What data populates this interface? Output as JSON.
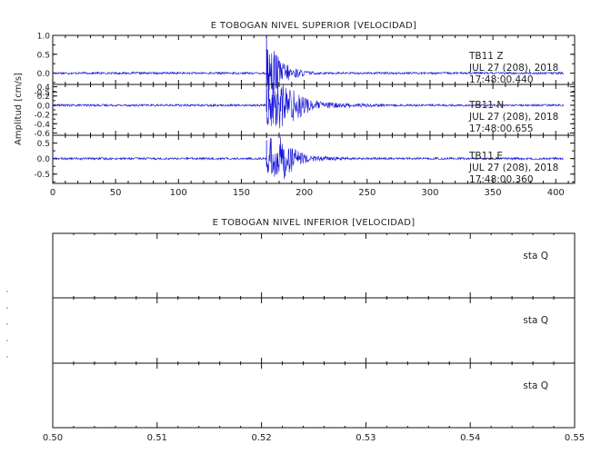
{
  "chart_data": [
    {
      "type": "line",
      "title": "E TOBOGAN NIVEL SUPERIOR [VELOCIDAD]",
      "ylabel": "Amplitud [cm/s]",
      "xlim": [
        0,
        415
      ],
      "x_ticks": [
        "0",
        "50",
        "100",
        "150",
        "200",
        "250",
        "300",
        "350",
        "400"
      ],
      "line_color": "#1414d8",
      "traces": [
        {
          "station": "TB11",
          "component": "Z",
          "date": "JUL 27 (208), 2018",
          "time": "17:48:00.440",
          "ylim": [
            -0.3,
            1.0
          ],
          "y_ticks": [
            "1.0",
            "0.5",
            "0.0",
            "-0.5"
          ],
          "onset_s": 170,
          "peak_amplitude": 1.0,
          "coda_duration_s": 60
        },
        {
          "station": "TB11",
          "component": "N",
          "date": "JUL 27 (208), 2018",
          "time": "17:48:00.655",
          "ylim": [
            -0.65,
            0.45
          ],
          "y_ticks": [
            "0.4",
            "0.2",
            "0.0",
            "-0.2",
            "-0.4",
            "-0.6"
          ],
          "onset_s": 170,
          "peak_amplitude": 0.4,
          "coda_duration_s": 110
        },
        {
          "station": "TB11",
          "component": "E",
          "date": "JUL 27 (208), 2018",
          "time": "17:48:00.360",
          "ylim": [
            -0.8,
            0.75
          ],
          "y_ticks": [
            "0.5",
            "0.0",
            "-0.5"
          ],
          "onset_s": 170,
          "peak_amplitude": 0.6,
          "coda_duration_s": 90
        }
      ]
    },
    {
      "type": "line",
      "title": "E TOBOGAN NIVEL INFERIOR [VELOCIDAD]",
      "xlim": [
        0.5,
        0.55
      ],
      "x_ticks": [
        "0.50",
        "0.51",
        "0.52",
        "0.53",
        "0.54",
        "0.55"
      ],
      "traces": [
        {
          "station": "sta",
          "component": "Q"
        },
        {
          "station": "sta",
          "component": "Q"
        },
        {
          "station": "sta",
          "component": "Q"
        }
      ]
    }
  ]
}
